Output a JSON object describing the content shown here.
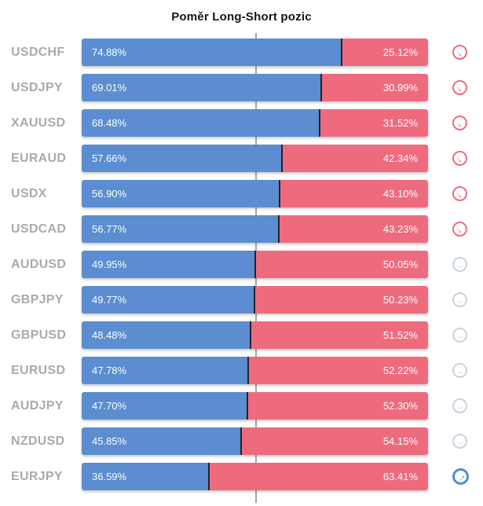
{
  "title": "Poměr Long-Short pozic",
  "colors": {
    "long_bar": "#5b8dd0",
    "short_bar": "#ee6b7e",
    "segment_divider": "#23232b",
    "midline": "#a6a6a6",
    "pair_label": "#a7abb0",
    "title_text": "#141414",
    "icon_down": "#ee6b7e",
    "icon_neutral": "#c8d3dd",
    "icon_up": "#4a8fd6"
  },
  "icon_names": {
    "down": "arrow-down-right-circle-icon",
    "neutral": "arrow-right-circle-icon",
    "up": "arrow-up-right-circle-icon"
  },
  "icon_glyph": "→",
  "chart_data": {
    "type": "bar",
    "orientation": "horizontal-stacked",
    "title": "Poměr Long-Short pozic",
    "categories": [
      "USDCHF",
      "USDJPY",
      "XAUUSD",
      "EURAUD",
      "USDX",
      "USDCAD",
      "AUDUSD",
      "GBPJPY",
      "GBPUSD",
      "EURUSD",
      "AUDJPY",
      "NZDUSD",
      "EURJPY"
    ],
    "series": [
      {
        "name": "Long",
        "values": [
          74.88,
          69.01,
          68.48,
          57.66,
          56.9,
          56.77,
          49.95,
          49.77,
          48.48,
          47.78,
          47.7,
          45.85,
          36.59
        ]
      },
      {
        "name": "Short",
        "values": [
          25.12,
          30.99,
          31.52,
          42.34,
          43.1,
          43.23,
          50.05,
          50.23,
          51.52,
          52.22,
          52.3,
          54.15,
          63.41
        ]
      }
    ],
    "xlim": [
      0,
      100
    ],
    "midline_value": 50,
    "grid": "single-vertical-midline",
    "legend": "none",
    "value_labels": "inside-segments"
  },
  "rows": [
    {
      "pair": "USDCHF",
      "long_label": "74.88%",
      "short_label": "25.12%",
      "long_pct": 74.88,
      "short_pct": 25.12,
      "trend": "down"
    },
    {
      "pair": "USDJPY",
      "long_label": "69.01%",
      "short_label": "30.99%",
      "long_pct": 69.01,
      "short_pct": 30.99,
      "trend": "down"
    },
    {
      "pair": "XAUUSD",
      "long_label": "68.48%",
      "short_label": "31.52%",
      "long_pct": 68.48,
      "short_pct": 31.52,
      "trend": "down"
    },
    {
      "pair": "EURAUD",
      "long_label": "57.66%",
      "short_label": "42.34%",
      "long_pct": 57.66,
      "short_pct": 42.34,
      "trend": "down"
    },
    {
      "pair": "USDX",
      "long_label": "56.90%",
      "short_label": "43.10%",
      "long_pct": 56.9,
      "short_pct": 43.1,
      "trend": "down"
    },
    {
      "pair": "USDCAD",
      "long_label": "56.77%",
      "short_label": "43.23%",
      "long_pct": 56.77,
      "short_pct": 43.23,
      "trend": "down"
    },
    {
      "pair": "AUDUSD",
      "long_label": "49.95%",
      "short_label": "50.05%",
      "long_pct": 49.95,
      "short_pct": 50.05,
      "trend": "neutral"
    },
    {
      "pair": "GBPJPY",
      "long_label": "49.77%",
      "short_label": "50.23%",
      "long_pct": 49.77,
      "short_pct": 50.23,
      "trend": "neutral"
    },
    {
      "pair": "GBPUSD",
      "long_label": "48.48%",
      "short_label": "51.52%",
      "long_pct": 48.48,
      "short_pct": 51.52,
      "trend": "neutral"
    },
    {
      "pair": "EURUSD",
      "long_label": "47.78%",
      "short_label": "52.22%",
      "long_pct": 47.78,
      "short_pct": 52.22,
      "trend": "neutral"
    },
    {
      "pair": "AUDJPY",
      "long_label": "47.70%",
      "short_label": "52.30%",
      "long_pct": 47.7,
      "short_pct": 52.3,
      "trend": "neutral"
    },
    {
      "pair": "NZDUSD",
      "long_label": "45.85%",
      "short_label": "54.15%",
      "long_pct": 45.85,
      "short_pct": 54.15,
      "trend": "neutral"
    },
    {
      "pair": "EURJPY",
      "long_label": "36.59%",
      "short_label": "63.41%",
      "long_pct": 36.59,
      "short_pct": 63.41,
      "trend": "up"
    }
  ]
}
